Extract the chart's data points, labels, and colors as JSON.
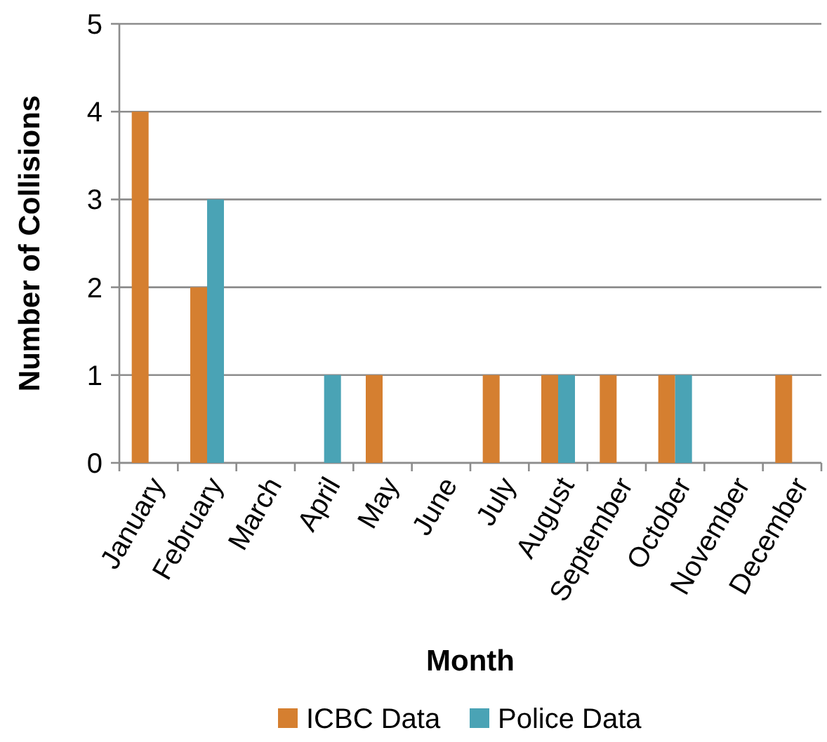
{
  "chart_data": {
    "type": "bar",
    "xlabel": "Month",
    "ylabel": "Number of Collisions",
    "categories": [
      "January",
      "February",
      "March",
      "April",
      "May",
      "June",
      "July",
      "August",
      "September",
      "October",
      "November",
      "December"
    ],
    "series": [
      {
        "name": "ICBC Data",
        "color": "#d57f30",
        "values": [
          4,
          2,
          0,
          0,
          1,
          0,
          1,
          1,
          1,
          1,
          0,
          1
        ]
      },
      {
        "name": "Police Data",
        "color": "#4aa3b5",
        "values": [
          0,
          3,
          0,
          1,
          0,
          0,
          0,
          1,
          0,
          1,
          0,
          0
        ]
      }
    ],
    "ylim": [
      0,
      5
    ],
    "yticks": [
      0,
      1,
      2,
      3,
      4,
      5
    ],
    "grid": "y",
    "legend": "bottom"
  }
}
